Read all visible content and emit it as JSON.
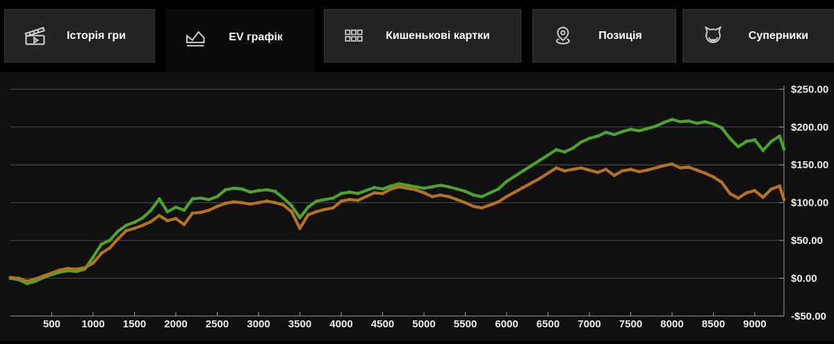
{
  "tabs": [
    {
      "label": "Історія гри",
      "icon": "clapperboard-icon",
      "active": false
    },
    {
      "label": "EV графік",
      "icon": "line-chart-icon",
      "active": true
    },
    {
      "label": "Кишенькові картки",
      "icon": "cards-grid-icon",
      "active": false
    },
    {
      "label": "Позиція",
      "icon": "position-pin-icon",
      "active": false
    },
    {
      "label": "Суперники",
      "icon": "opponents-icon",
      "active": false
    }
  ],
  "colors": {
    "page_bg": "#000000",
    "panel_bg": "#101010",
    "tab_bg": "#232323",
    "tab_border": "#343434",
    "active_tab_bg": "#0a0a0a",
    "icon_stroke": "#cfcfcf",
    "winnings_green": "#4aa528",
    "ev_orange": "#b5731d",
    "gridline": "#4e4e4e",
    "axis": "#9a9a9a",
    "tick_label": "#ededed"
  },
  "chart_data": {
    "type": "line",
    "title": "",
    "legend": "none",
    "grid": "horizontal-only",
    "x_axis": {
      "min": 0,
      "max": 9353,
      "tick_values": [
        500,
        1000,
        1500,
        2000,
        2500,
        3000,
        3500,
        4000,
        4500,
        5000,
        5500,
        6000,
        6500,
        7000,
        7500,
        8000,
        8500,
        9000
      ],
      "tick_labels": [
        "500",
        "1000",
        "1500",
        "2000",
        "2500",
        "3000",
        "3500",
        "4000",
        "4500",
        "5000",
        "5500",
        "6000",
        "6500",
        "7000",
        "7500",
        "8000",
        "8500",
        "9000"
      ]
    },
    "y_axis": {
      "tick_values": [
        250,
        200,
        150,
        100,
        50,
        0,
        -50
      ],
      "tick_labels": [
        "$250.00",
        "$200.00",
        "$150.00",
        "$100.00",
        "$50.00",
        "$0.00",
        "-$50.00"
      ],
      "gridline_values": [
        250,
        200,
        150,
        100,
        50,
        0
      ]
    },
    "x": [
      0,
      100,
      200,
      300,
      400,
      500,
      600,
      700,
      800,
      900,
      1000,
      1100,
      1200,
      1300,
      1400,
      1500,
      1600,
      1700,
      1800,
      1900,
      2000,
      2100,
      2200,
      2300,
      2400,
      2500,
      2600,
      2700,
      2800,
      2900,
      3000,
      3100,
      3200,
      3300,
      3400,
      3500,
      3600,
      3700,
      3800,
      3900,
      4000,
      4100,
      4200,
      4300,
      4400,
      4500,
      4600,
      4700,
      4800,
      4900,
      5000,
      5100,
      5200,
      5300,
      5400,
      5500,
      5600,
      5700,
      5800,
      5900,
      6000,
      6100,
      6200,
      6300,
      6400,
      6500,
      6600,
      6700,
      6800,
      6900,
      7000,
      7100,
      7200,
      7300,
      7400,
      7500,
      7600,
      7700,
      7800,
      7900,
      8000,
      8100,
      8200,
      8300,
      8400,
      8500,
      8600,
      8700,
      8800,
      8900,
      9000,
      9100,
      9200,
      9300,
      9353
    ],
    "series": [
      {
        "name": "winnings",
        "color": "#4aa528",
        "values": [
          0,
          -2,
          -7,
          -4,
          1,
          5,
          8,
          10,
          9,
          12,
          28,
          45,
          50,
          62,
          70,
          74,
          80,
          90,
          105,
          88,
          94,
          90,
          105,
          106,
          104,
          108,
          117,
          119,
          118,
          114,
          116,
          117,
          115,
          106,
          96,
          80,
          94,
          102,
          104,
          106,
          112,
          114,
          112,
          116,
          120,
          118,
          122,
          125,
          123,
          121,
          119,
          121,
          123,
          121,
          118,
          115,
          110,
          108,
          113,
          118,
          128,
          135,
          142,
          149,
          156,
          163,
          170,
          167,
          172,
          180,
          185,
          188,
          193,
          190,
          194,
          197,
          195,
          198,
          201,
          206,
          210,
          207,
          208,
          205,
          207,
          204,
          199,
          185,
          174,
          181,
          183,
          169,
          181,
          188,
          171
        ]
      },
      {
        "name": "all-in-ev",
        "color": "#b5731d",
        "values": [
          1,
          0,
          -4,
          -1,
          3,
          7,
          11,
          13,
          12,
          14,
          20,
          33,
          40,
          52,
          63,
          66,
          70,
          75,
          83,
          76,
          79,
          71,
          86,
          87,
          90,
          95,
          99,
          101,
          100,
          98,
          100,
          102,
          100,
          97,
          88,
          66,
          84,
          88,
          91,
          93,
          102,
          104,
          103,
          108,
          113,
          112,
          118,
          121,
          119,
          117,
          113,
          108,
          110,
          108,
          104,
          100,
          95,
          93,
          97,
          101,
          108,
          114,
          120,
          126,
          132,
          139,
          146,
          142,
          144,
          146,
          143,
          140,
          144,
          136,
          142,
          144,
          141,
          143,
          146,
          149,
          151,
          146,
          147,
          143,
          139,
          134,
          127,
          112,
          106,
          113,
          116,
          107,
          118,
          122,
          104
        ]
      }
    ]
  }
}
